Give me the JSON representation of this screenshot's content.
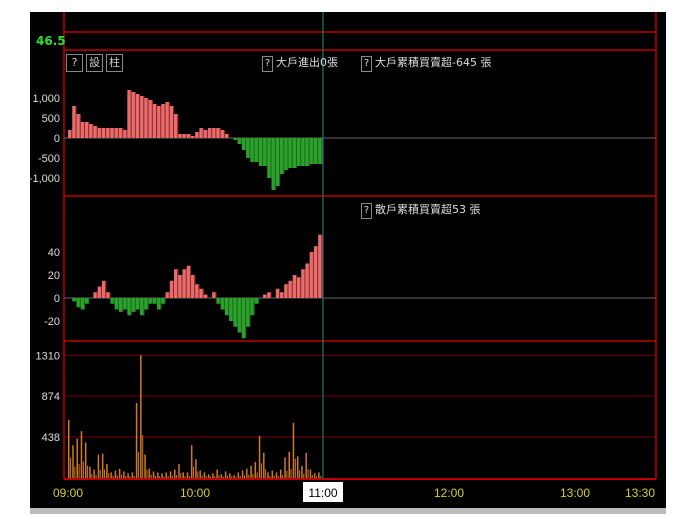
{
  "price_label": "46.5",
  "toolbar": {
    "help": "?",
    "settings": "設",
    "bars": "柱"
  },
  "legends": {
    "help": "?",
    "big_flow": "大戶進出0張",
    "big_cum": "大戶累積買賣超-645 張",
    "retail_cum": "散戶累積買賣超53 張"
  },
  "colors": {
    "positive": "#e07070",
    "negative": "#2ea02e",
    "volume": "#d07a22",
    "grid": "#c00000",
    "axis_text": "#d8d020",
    "crosshair": "#2a8a8a"
  },
  "chart_data": [
    {
      "type": "bar",
      "panel": "big-holders",
      "x_start": "09:00",
      "x_end": "11:00",
      "interval_min": 2,
      "yticks": [
        1000,
        500,
        0,
        -500,
        -1000
      ],
      "ytick_labels": [
        "1,000",
        "500",
        "0",
        "-500",
        "-1,000"
      ],
      "ylim": [
        -1450,
        1450
      ],
      "values": [
        200,
        800,
        600,
        400,
        400,
        350,
        300,
        250,
        250,
        250,
        250,
        250,
        250,
        200,
        1200,
        1150,
        1100,
        1050,
        1000,
        950,
        850,
        800,
        850,
        900,
        800,
        600,
        100,
        100,
        100,
        50,
        150,
        250,
        200,
        250,
        250,
        250,
        200,
        100,
        0,
        -50,
        -150,
        -300,
        -500,
        -600,
        -600,
        -700,
        -700,
        -1000,
        -1300,
        -1200,
        -900,
        -800,
        -750,
        -750,
        -700,
        -700,
        -700,
        -650,
        -650,
        -650
      ]
    },
    {
      "type": "bar",
      "panel": "retail",
      "x_start": "09:00",
      "x_end": "11:00",
      "interval_min": 2,
      "yticks": [
        40,
        20,
        0,
        -20
      ],
      "ytick_labels": [
        "40",
        "20",
        "0",
        "-20"
      ],
      "ylim": [
        -75,
        75
      ],
      "values": [
        0,
        -3,
        -8,
        -10,
        -5,
        0,
        5,
        10,
        15,
        5,
        -5,
        -10,
        -12,
        -10,
        -15,
        -12,
        -10,
        -15,
        -10,
        -5,
        -5,
        -10,
        -5,
        5,
        15,
        25,
        20,
        25,
        28,
        20,
        12,
        8,
        3,
        0,
        5,
        -5,
        -10,
        -15,
        -20,
        -25,
        -30,
        -35,
        -25,
        -15,
        -5,
        0,
        3,
        5,
        0,
        8,
        5,
        12,
        15,
        20,
        18,
        25,
        30,
        40,
        45,
        55
      ]
    },
    {
      "type": "bar",
      "panel": "volume",
      "x_start": "09:00",
      "x_end": "11:00",
      "interval_min": 2,
      "yticks": [
        1310,
        874,
        438
      ],
      "ytick_labels": [
        "1310",
        "874",
        "438"
      ],
      "ylim": [
        0,
        1420
      ],
      "values": [
        620,
        350,
        420,
        500,
        380,
        120,
        90,
        250,
        260,
        150,
        60,
        80,
        100,
        70,
        50,
        60,
        800,
        1310,
        250,
        100,
        70,
        60,
        50,
        60,
        70,
        90,
        150,
        60,
        60,
        350,
        200,
        80,
        60,
        40,
        50,
        90,
        40,
        70,
        50,
        30,
        60,
        80,
        100,
        130,
        170,
        450,
        270,
        60,
        80,
        60,
        90,
        220,
        280,
        590,
        230,
        130,
        270,
        90,
        50,
        60
      ]
    }
  ],
  "xaxis": {
    "ticks": [
      "09:00",
      "10:00",
      "11:00",
      "12:00",
      "13:00",
      "13:30"
    ],
    "cursor_label": "11:00"
  }
}
